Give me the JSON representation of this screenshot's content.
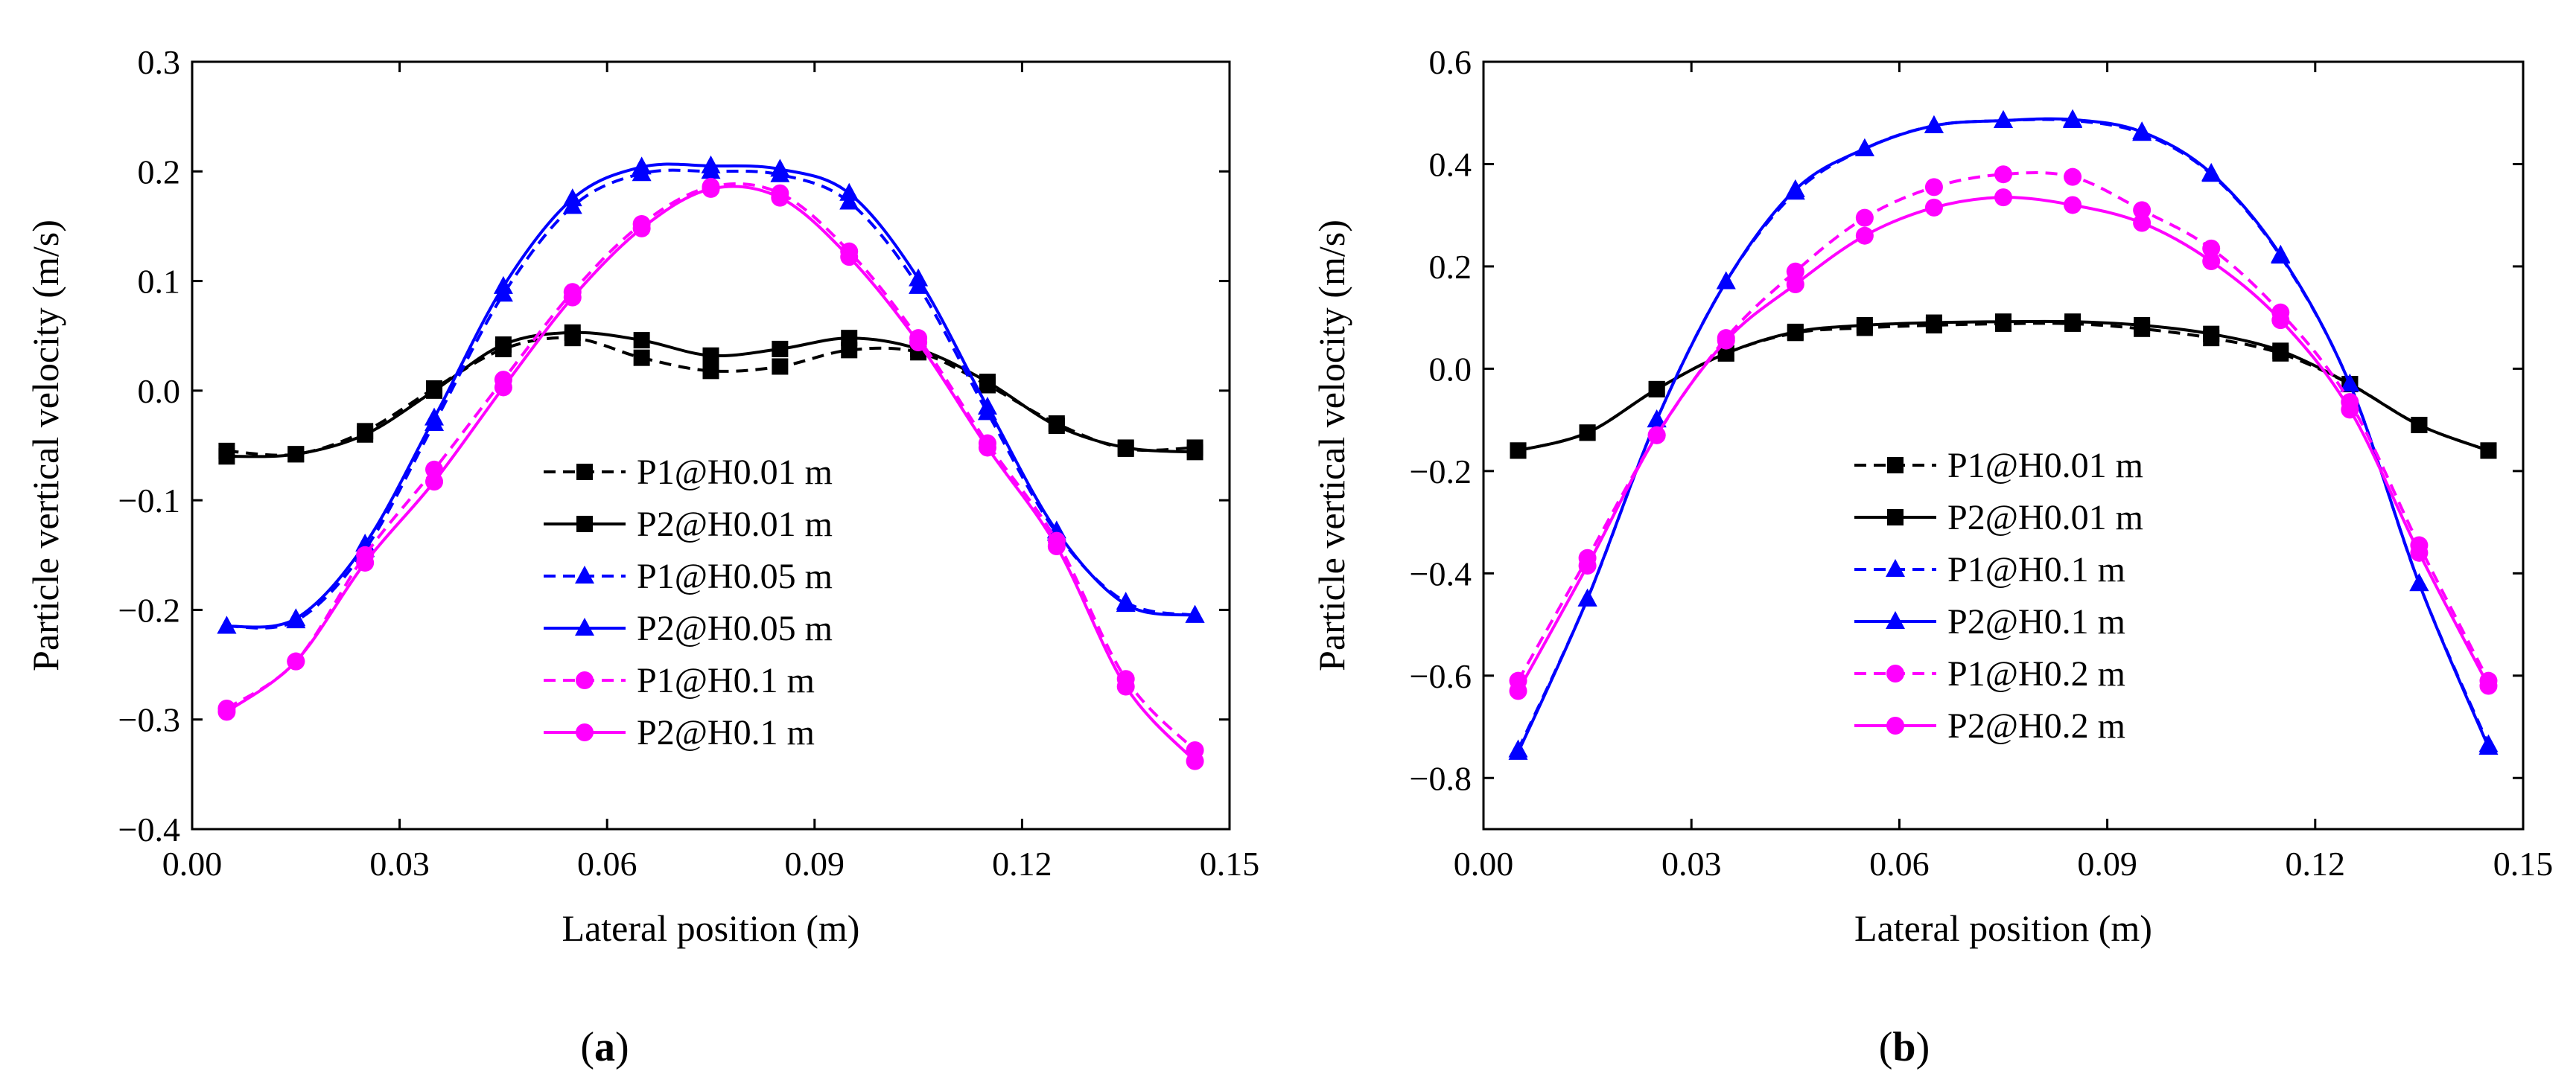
{
  "figure": {
    "panel_labels": [
      {
        "open": "(",
        "letter": "a",
        "close": ")"
      },
      {
        "open": "(",
        "letter": "b",
        "close": ")"
      }
    ]
  },
  "chart_data": [
    {
      "type": "line",
      "panel": "a",
      "xlabel": "Lateral position (m)",
      "ylabel": "Particle vertical velocity (m/s)",
      "xlim": [
        0.0,
        0.15
      ],
      "ylim": [
        -0.4,
        0.3
      ],
      "xticks": [
        0.0,
        0.03,
        0.06,
        0.09,
        0.12,
        0.15
      ],
      "xtick_labels": [
        "0.00",
        "0.03",
        "0.06",
        "0.09",
        "0.12",
        "0.15"
      ],
      "yticks": [
        -0.4,
        -0.3,
        -0.2,
        -0.1,
        0.0,
        0.1,
        0.2,
        0.3
      ],
      "ytick_labels": [
        "−0.4",
        "−0.3",
        "−0.2",
        "−0.1",
        "0.0",
        "0.1",
        "0.2",
        "0.3"
      ],
      "grid": false,
      "legend_position": "center-right",
      "x": [
        0.005,
        0.015,
        0.025,
        0.035,
        0.045,
        0.055,
        0.065,
        0.075,
        0.085,
        0.095,
        0.105,
        0.115,
        0.125,
        0.135,
        0.145
      ],
      "series": [
        {
          "name": "P1@H0.01 m",
          "color": "#000000",
          "dash": "dashed",
          "marker": "square",
          "values": [
            -0.055,
            -0.058,
            -0.037,
            0.002,
            0.038,
            0.048,
            0.03,
            0.018,
            0.022,
            0.037,
            0.035,
            0.005,
            -0.03,
            -0.053,
            -0.052
          ]
        },
        {
          "name": "P2@H0.01 m",
          "color": "#000000",
          "dash": "solid",
          "marker": "square",
          "values": [
            -0.06,
            -0.058,
            -0.04,
            0.0,
            0.042,
            0.053,
            0.046,
            0.032,
            0.038,
            0.048,
            0.038,
            0.008,
            -0.032,
            -0.052,
            -0.056
          ]
        },
        {
          "name": "P1@H0.05 m",
          "color": "#0000ff",
          "dash": "dashed",
          "marker": "triangle",
          "values": [
            -0.215,
            -0.21,
            -0.145,
            -0.03,
            0.088,
            0.168,
            0.198,
            0.2,
            0.197,
            0.172,
            0.095,
            -0.02,
            -0.13,
            -0.193,
            -0.205
          ]
        },
        {
          "name": "P2@H0.05 m",
          "color": "#0000ff",
          "dash": "solid",
          "marker": "triangle",
          "values": [
            -0.215,
            -0.208,
            -0.14,
            -0.025,
            0.095,
            0.175,
            0.204,
            0.205,
            0.202,
            0.18,
            0.102,
            -0.015,
            -0.128,
            -0.195,
            -0.205
          ]
        },
        {
          "name": "P1@H0.1 m",
          "color": "#ff00ff",
          "dash": "dashed",
          "marker": "circle",
          "values": [
            -0.29,
            -0.247,
            -0.15,
            -0.072,
            0.01,
            0.09,
            0.152,
            0.186,
            0.18,
            0.127,
            0.048,
            -0.048,
            -0.137,
            -0.263,
            -0.328
          ]
        },
        {
          "name": "P2@H0.1 m",
          "color": "#ff00ff",
          "dash": "solid",
          "marker": "circle",
          "values": [
            -0.293,
            -0.247,
            -0.157,
            -0.083,
            0.003,
            0.085,
            0.148,
            0.184,
            0.176,
            0.122,
            0.044,
            -0.052,
            -0.142,
            -0.27,
            -0.338
          ]
        }
      ]
    },
    {
      "type": "line",
      "panel": "b",
      "xlabel": "Lateral position (m)",
      "ylabel": "Particle vertical velocity (m/s)",
      "xlim": [
        0.0,
        0.15
      ],
      "ylim": [
        -0.9,
        0.6
      ],
      "xticks": [
        0.0,
        0.03,
        0.06,
        0.09,
        0.12,
        0.15
      ],
      "xtick_labels": [
        "0.00",
        "0.03",
        "0.06",
        "0.09",
        "0.12",
        "0.15"
      ],
      "yticks": [
        -0.8,
        -0.6,
        -0.4,
        -0.2,
        0.0,
        0.2,
        0.4,
        0.6
      ],
      "ytick_labels": [
        "−0.8",
        "−0.6",
        "−0.4",
        "−0.2",
        "0.0",
        "0.2",
        "0.4",
        "0.6"
      ],
      "grid": false,
      "legend_position": "center-right",
      "x": [
        0.005,
        0.015,
        0.025,
        0.035,
        0.045,
        0.055,
        0.065,
        0.075,
        0.085,
        0.095,
        0.105,
        0.115,
        0.125,
        0.135,
        0.145
      ],
      "series": [
        {
          "name": "P1@H0.01 m",
          "color": "#000000",
          "dash": "dashed",
          "marker": "square",
          "values": [
            -0.16,
            -0.125,
            -0.04,
            0.03,
            0.07,
            0.08,
            0.085,
            0.088,
            0.088,
            0.078,
            0.06,
            0.03,
            -0.03,
            -0.11,
            -0.16
          ]
        },
        {
          "name": "P2@H0.01 m",
          "color": "#000000",
          "dash": "solid",
          "marker": "square",
          "values": [
            -0.16,
            -0.125,
            -0.04,
            0.03,
            0.072,
            0.085,
            0.09,
            0.092,
            0.092,
            0.085,
            0.068,
            0.035,
            -0.03,
            -0.11,
            -0.16
          ]
        },
        {
          "name": "P1@H0.1 m",
          "color": "#0000ff",
          "dash": "dashed",
          "marker": "triangle",
          "values": [
            -0.745,
            -0.45,
            -0.1,
            0.17,
            0.345,
            0.43,
            0.475,
            0.485,
            0.485,
            0.46,
            0.38,
            0.22,
            -0.03,
            -0.42,
            -0.735
          ]
        },
        {
          "name": "P2@H0.1 m",
          "color": "#0000ff",
          "dash": "solid",
          "marker": "triangle",
          "values": [
            -0.75,
            -0.45,
            -0.1,
            0.17,
            0.35,
            0.43,
            0.475,
            0.485,
            0.487,
            0.463,
            0.382,
            0.222,
            -0.03,
            -0.42,
            -0.74
          ]
        },
        {
          "name": "P1@H0.2 m",
          "color": "#ff00ff",
          "dash": "dashed",
          "marker": "circle",
          "values": [
            -0.61,
            -0.37,
            -0.13,
            0.06,
            0.19,
            0.295,
            0.355,
            0.38,
            0.375,
            0.31,
            0.235,
            0.11,
            -0.065,
            -0.345,
            -0.61
          ]
        },
        {
          "name": "P2@H0.2 m",
          "color": "#ff00ff",
          "dash": "solid",
          "marker": "circle",
          "values": [
            -0.63,
            -0.385,
            -0.13,
            0.055,
            0.165,
            0.26,
            0.315,
            0.335,
            0.32,
            0.285,
            0.21,
            0.095,
            -0.08,
            -0.36,
            -0.62
          ]
        }
      ]
    }
  ]
}
